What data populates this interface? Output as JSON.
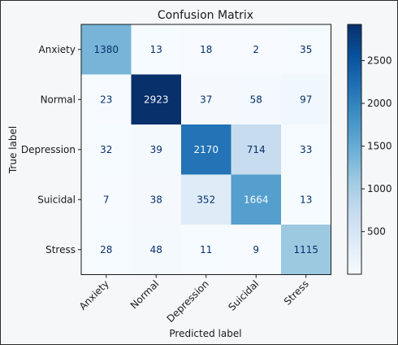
{
  "chart_data": {
    "type": "heatmap",
    "title": "Confusion Matrix",
    "xlabel": "Predicted label",
    "ylabel": "True label",
    "x_categories": [
      "Anxiety",
      "Normal",
      "Depression",
      "Suicidal",
      "Stress"
    ],
    "y_categories": [
      "Anxiety",
      "Normal",
      "Depression",
      "Suicidal",
      "Stress"
    ],
    "values": [
      [
        1380,
        13,
        18,
        2,
        35
      ],
      [
        23,
        2923,
        37,
        58,
        97
      ],
      [
        32,
        39,
        2170,
        714,
        33
      ],
      [
        7,
        38,
        352,
        1664,
        13
      ],
      [
        28,
        48,
        11,
        9,
        1115
      ]
    ],
    "colormap": "Blues",
    "colorbar": {
      "vmin": 2,
      "vmax": 2923,
      "ticks": [
        500,
        1000,
        1500,
        2000,
        2500
      ]
    },
    "x_tick_rotation": 45,
    "grid": false,
    "colors": {
      "low": "#f7fbff",
      "high": "#08306b",
      "text_dark": "#08306b",
      "text_light": "#f7fbff"
    }
  }
}
